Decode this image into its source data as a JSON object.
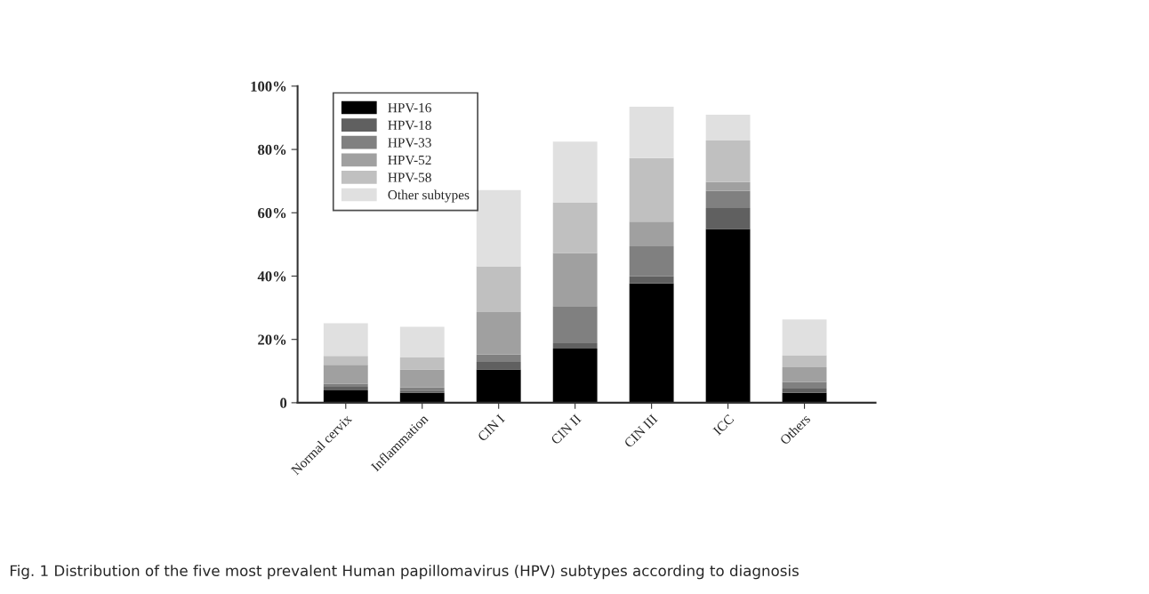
{
  "chart_data": {
    "type": "bar",
    "stacked": true,
    "categories": [
      "Normal cervix",
      "Inflammation",
      "CIN I",
      "CIN II",
      "CIN III",
      "ICC",
      "Others"
    ],
    "series": [
      {
        "name": "HPV-16",
        "color": "#000000",
        "values": [
          3.9,
          3.1,
          10.5,
          17.1,
          37.7,
          54.9,
          3.1
        ]
      },
      {
        "name": "HPV-18",
        "color": "#606060",
        "values": [
          1.1,
          0.7,
          2.4,
          1.7,
          2.2,
          6.6,
          1.4
        ]
      },
      {
        "name": "HPV-33",
        "color": "#808080",
        "values": [
          1.0,
          1.0,
          2.3,
          11.7,
          9.5,
          5.4,
          2.0
        ]
      },
      {
        "name": "HPV-52",
        "color": "#a0a0a0",
        "values": [
          6.0,
          5.7,
          13.4,
          16.8,
          7.8,
          2.8,
          4.7
        ]
      },
      {
        "name": "HPV-58",
        "color": "#c0c0c0",
        "values": [
          2.8,
          3.8,
          14.5,
          15.9,
          20.1,
          13.1,
          3.8
        ]
      },
      {
        "name": "Other subtypes",
        "color": "#e0e0e0",
        "values": [
          10.3,
          9.7,
          24.1,
          19.3,
          16.2,
          8.2,
          11.3
        ]
      }
    ],
    "ylim": [
      0,
      100
    ],
    "yticks": [
      0,
      {
        "value": 20,
        "label": "20%"
      },
      {
        "value": 40,
        "label": "40%"
      },
      {
        "value": 60,
        "label": "60%"
      },
      {
        "value": 80,
        "label": "80%"
      },
      {
        "value": 100,
        "label": "100%"
      }
    ],
    "grid": false,
    "legend": "top left",
    "annotations": [
      "Fig. 1 Distribution of the five most prevalent Human papillomavirus (HPV) subtypes according to diagnosis"
    ]
  }
}
